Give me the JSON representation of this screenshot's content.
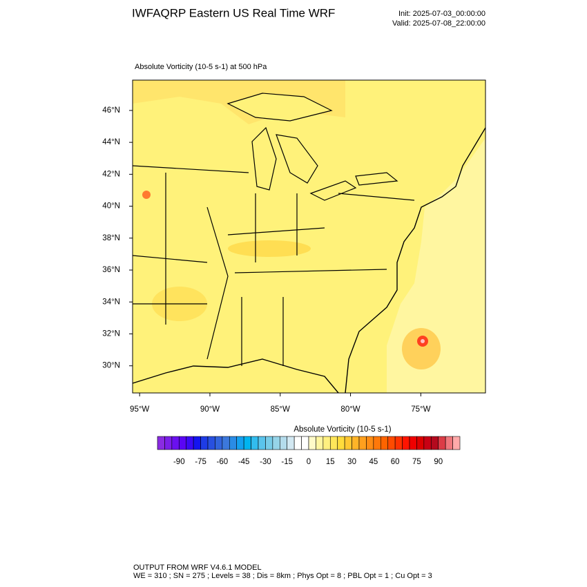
{
  "header": {
    "title": "IWFAQRP Eastern US Real Time WRF",
    "init": "Init: 2025-07-03_00:00:00",
    "valid": "Valid: 2025-07-08_22:00:00"
  },
  "map": {
    "subtitle": "Absolute Vorticity   (10-5 s-1)     at   500 hPa",
    "xlim": [
      -95.5,
      -70.4
    ],
    "ylim": [
      28.3,
      47.9
    ],
    "xticks": [
      {
        "value": -95,
        "label": "95°W"
      },
      {
        "value": -90,
        "label": "90°W"
      },
      {
        "value": -85,
        "label": "85°W"
      },
      {
        "value": -80,
        "label": "80°W"
      },
      {
        "value": -75,
        "label": "75°W"
      }
    ],
    "yticks": [
      {
        "value": 30,
        "label": "30°N"
      },
      {
        "value": 32,
        "label": "32°N"
      },
      {
        "value": 34,
        "label": "34°N"
      },
      {
        "value": 36,
        "label": "36°N"
      },
      {
        "value": 38,
        "label": "38°N"
      },
      {
        "value": 40,
        "label": "40°N"
      },
      {
        "value": 42,
        "label": "42°N"
      },
      {
        "value": 44,
        "label": "44°N"
      },
      {
        "value": 46,
        "label": "46°N"
      }
    ]
  },
  "colorbar": {
    "title": "Absolute Vorticity  (10-5 s-1)",
    "range": [
      -105,
      105
    ],
    "ticks": [
      -90,
      -75,
      -60,
      -45,
      -30,
      -15,
      0,
      15,
      30,
      45,
      60,
      75,
      90
    ],
    "colors": [
      "#8a2be2",
      "#7b1fe8",
      "#6a10f0",
      "#5a05f5",
      "#3a0af5",
      "#1414f0",
      "#1e3ce6",
      "#2850e0",
      "#3264dc",
      "#3c78dc",
      "#2a8ce6",
      "#14a0f0",
      "#00b4f0",
      "#32bcee",
      "#5ac4ec",
      "#78cce8",
      "#96d4e8",
      "#b4dcec",
      "#d2e8f2",
      "#ffffff",
      "#ffffff",
      "#fffac8",
      "#fff5a0",
      "#fff080",
      "#ffe65a",
      "#ffdc3c",
      "#ffc832",
      "#ffb428",
      "#ffa01e",
      "#ff8c14",
      "#ff780a",
      "#ff6400",
      "#ff4b00",
      "#ff3200",
      "#ff1400",
      "#f00000",
      "#dc0000",
      "#c80014",
      "#b40a1e",
      "#dc3c46",
      "#f0787d",
      "#ffaaaa"
    ]
  },
  "footer": {
    "line1": "OUTPUT FROM WRF V4.6.1 MODEL",
    "line2": "WE = 310 ; SN = 275 ; Levels = 38 ; Dis = 8km ; Phys Opt = 8 ; PBL Opt = 1 ; Cu Opt = 3"
  }
}
